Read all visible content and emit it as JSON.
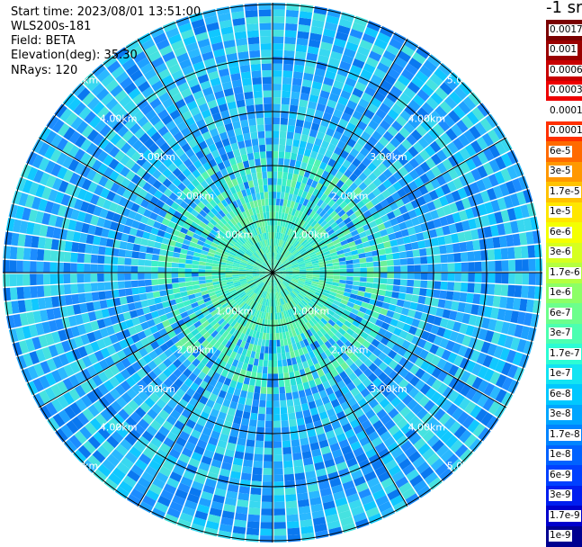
{
  "info": {
    "start_time": "Start time: 2023/08/01 13:51:00",
    "instrument": "WLS200s-181",
    "field": "Field: BETA",
    "elevation": "Elevation(deg): 35.30",
    "nrays": "NRays: 120"
  },
  "colorbar": {
    "title": "-1 sr",
    "labels": [
      "0.0017",
      "0.001",
      "0.0006",
      "0.0003",
      "0.00017",
      "0.0001",
      "6e-5",
      "3e-5",
      "1.7e-5",
      "1e-5",
      "6e-6",
      "3e-6",
      "1.7e-6",
      "1e-6",
      "6e-7",
      "3e-7",
      "1.7e-7",
      "1e-7",
      "6e-8",
      "3e-8",
      "1.7e-8",
      "1e-8",
      "6e-9",
      "3e-9",
      "1.7e-9",
      "1e-9"
    ],
    "colors": [
      "#7a0000",
      "#9a0000",
      "#c80000",
      "#ee0000",
      "#ffffff",
      "#ff3000",
      "#ff6a00",
      "#ff9800",
      "#ffc200",
      "#ffe600",
      "#f4ff00",
      "#d6ff20",
      "#b4ff40",
      "#8cff66",
      "#6cff8c",
      "#4cffb0",
      "#2cfcd4",
      "#12e4f2",
      "#00c8ff",
      "#00a6ff",
      "#0084ff",
      "#0062ff",
      "#0040ff",
      "#001ef0",
      "#0000cc",
      "#000090"
    ]
  },
  "range_rings": {
    "labels": [
      "1.00km",
      "2.00km",
      "3.00km",
      "4.00km",
      "5.00km"
    ],
    "colors_near": [
      "#3cf0c8",
      "#54f4b0",
      "#6cf09a",
      "#2ae0d8"
    ],
    "colors_far": [
      "#1ea0ff",
      "#2ab8ff",
      "#10c8ff",
      "#38d8f0",
      "#1c8cff",
      "#0a78f0",
      "#46e2e0"
    ]
  },
  "plot": {
    "nrays": 120
  }
}
